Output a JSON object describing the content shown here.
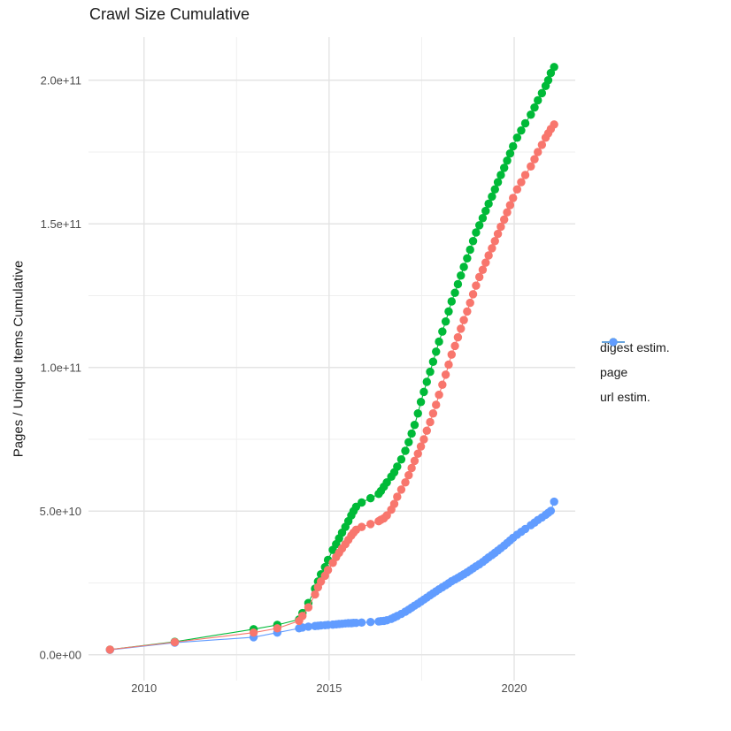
{
  "chart_data": {
    "type": "scatter",
    "title": "Crawl Size Cumulative",
    "xlabel": "",
    "ylabel": "Pages / Unique Items Cumulative",
    "legend_position": "right",
    "grid": true,
    "value_unit": "1e9 (values stored in billions of pages / items)",
    "xlim": [
      2008.5,
      2021.65
    ],
    "ylim": [
      -9,
      215
    ],
    "x_ticks": [
      {
        "v": 2010,
        "label": "2010"
      },
      {
        "v": 2015,
        "label": "2015"
      },
      {
        "v": 2020,
        "label": "2020"
      }
    ],
    "x_minor": [
      2012.5,
      2017.5
    ],
    "y_ticks": [
      {
        "v": 0,
        "label": "0.0e+00"
      },
      {
        "v": 50,
        "label": "5.0e+10"
      },
      {
        "v": 100,
        "label": "1.0e+11"
      },
      {
        "v": 150,
        "label": "1.5e+11"
      },
      {
        "v": 200,
        "label": "2.0e+11"
      }
    ],
    "y_minor": [
      25,
      75,
      125,
      175
    ],
    "x": [
      2009.08,
      2010.83,
      2012.96,
      2013.6,
      2014.19,
      2014.28,
      2014.44,
      2014.62,
      2014.7,
      2014.78,
      2014.89,
      2014.97,
      2015.1,
      2015.19,
      2015.27,
      2015.35,
      2015.44,
      2015.52,
      2015.6,
      2015.66,
      2015.73,
      2015.88,
      2016.12,
      2016.34,
      2016.4,
      2016.48,
      2016.56,
      2016.68,
      2016.76,
      2016.84,
      2016.95,
      2017.06,
      2017.15,
      2017.23,
      2017.31,
      2017.4,
      2017.48,
      2017.56,
      2017.64,
      2017.73,
      2017.81,
      2017.89,
      2017.97,
      2018.06,
      2018.15,
      2018.23,
      2018.31,
      2018.4,
      2018.48,
      2018.56,
      2018.64,
      2018.73,
      2018.81,
      2018.89,
      2018.97,
      2019.06,
      2019.15,
      2019.23,
      2019.31,
      2019.4,
      2019.48,
      2019.56,
      2019.64,
      2019.73,
      2019.81,
      2019.89,
      2019.97,
      2020.08,
      2020.19,
      2020.3,
      2020.45,
      2020.55,
      2020.64,
      2020.75,
      2020.85,
      2020.92,
      2020.99,
      2021.08
    ],
    "series": [
      {
        "name": "digest estim.",
        "color": "#F8766D",
        "values": [
          1.8,
          4.4,
          7.7,
          9.2,
          11.8,
          13.5,
          16.5,
          21,
          23.5,
          25.5,
          27.5,
          29.5,
          32,
          34,
          35.5,
          37,
          38.5,
          40,
          41.5,
          42.5,
          43.5,
          44.5,
          45.5,
          46.5,
          47,
          47.5,
          48.5,
          50.5,
          52.5,
          55,
          57.5,
          60,
          62.5,
          65,
          67.5,
          70,
          72.5,
          75,
          78,
          81,
          84,
          87,
          90.5,
          94,
          97.5,
          101,
          104.5,
          107.5,
          110.5,
          113.5,
          116.5,
          119.5,
          122.5,
          125.5,
          128.5,
          131.5,
          134,
          136.5,
          139,
          141.5,
          144,
          146.5,
          149,
          151.5,
          154,
          156.5,
          159,
          162,
          164.5,
          167,
          170,
          172.5,
          175,
          177.5,
          180,
          181.5,
          183,
          184.6
        ]
      },
      {
        "name": "page",
        "color": "#00BA38",
        "values": [
          1.8,
          4.5,
          8.9,
          10.4,
          12.3,
          14.5,
          18,
          23,
          25.5,
          28,
          30.5,
          33,
          36.5,
          38.5,
          40.5,
          42.5,
          44.5,
          46.5,
          48.5,
          50,
          51.5,
          53,
          54.5,
          56,
          57,
          58.5,
          60,
          62,
          63.5,
          65.5,
          68,
          71,
          74,
          77,
          80,
          84,
          88,
          91.5,
          95,
          98.5,
          102,
          105.5,
          109,
          112.5,
          116,
          119.5,
          123,
          126,
          129,
          132,
          135,
          138,
          141,
          144,
          147,
          149.5,
          152,
          154.5,
          157,
          159.5,
          162,
          164.5,
          167,
          169.5,
          172,
          174.5,
          177,
          180,
          182.5,
          185,
          188,
          190.5,
          193,
          195.5,
          198,
          200,
          202.5,
          204.6
        ]
      },
      {
        "name": "url estim.",
        "color": "#619CFF",
        "values": [
          1.7,
          4.2,
          6.1,
          7.7,
          9.2,
          9.5,
          9.8,
          10.0,
          10.1,
          10.2,
          10.3,
          10.4,
          10.5,
          10.6,
          10.7,
          10.8,
          10.9,
          11.0,
          11.0,
          11.1,
          11.1,
          11.2,
          11.4,
          11.6,
          11.7,
          11.8,
          12.0,
          12.5,
          13.0,
          13.5,
          14.2,
          15.0,
          15.7,
          16.4,
          17.1,
          17.8,
          18.5,
          19.2,
          19.9,
          20.7,
          21.4,
          22.1,
          22.8,
          23.5,
          24.2,
          24.9,
          25.6,
          26.2,
          26.8,
          27.4,
          28.0,
          28.7,
          29.4,
          30.1,
          30.8,
          31.5,
          32.3,
          33.1,
          33.9,
          34.7,
          35.5,
          36.3,
          37.1,
          38.0,
          38.9,
          39.8,
          40.7,
          41.8,
          42.8,
          43.8,
          45.1,
          46.0,
          46.9,
          47.8,
          48.7,
          49.4,
          50.1,
          53.3
        ]
      }
    ]
  },
  "legend": {
    "items": [
      "digest estim.",
      "page",
      "url estim."
    ]
  },
  "style": {
    "grid_major_color": "#E4E4E4",
    "grid_minor_color": "#EFEFEF",
    "tick_label_color": "#4D4D4D",
    "text_color": "#1a1a1a",
    "background": "#FFFFFF"
  }
}
